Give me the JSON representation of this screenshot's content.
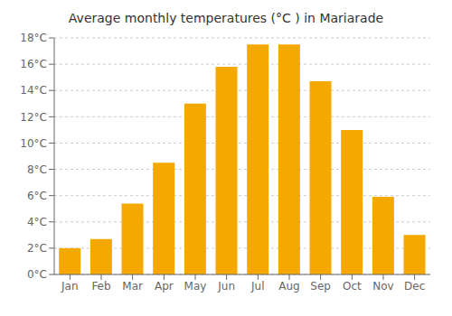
{
  "chart_data": {
    "type": "bar",
    "title": "Average monthly temperatures (°C ) in Mariarade",
    "categories": [
      "Jan",
      "Feb",
      "Mar",
      "Apr",
      "May",
      "Jun",
      "Jul",
      "Aug",
      "Sep",
      "Oct",
      "Nov",
      "Dec"
    ],
    "values": [
      2.0,
      2.7,
      5.4,
      8.5,
      13.0,
      15.8,
      17.5,
      17.5,
      14.7,
      11.0,
      5.9,
      3.0
    ],
    "color": "#F5A800",
    "ylim": [
      0,
      18
    ],
    "yticks": [
      {
        "value": 0,
        "label": "0°C"
      },
      {
        "value": 2,
        "label": "2°C"
      },
      {
        "value": 4,
        "label": "4°C"
      },
      {
        "value": 6,
        "label": "6°C"
      },
      {
        "value": 8,
        "label": "8°C"
      },
      {
        "value": 10,
        "label": "10°C"
      },
      {
        "value": 12,
        "label": "12°C"
      },
      {
        "value": 14,
        "label": "14°C"
      },
      {
        "value": 16,
        "label": "16°C"
      },
      {
        "value": 18,
        "label": "18°C"
      }
    ],
    "grid": true
  }
}
